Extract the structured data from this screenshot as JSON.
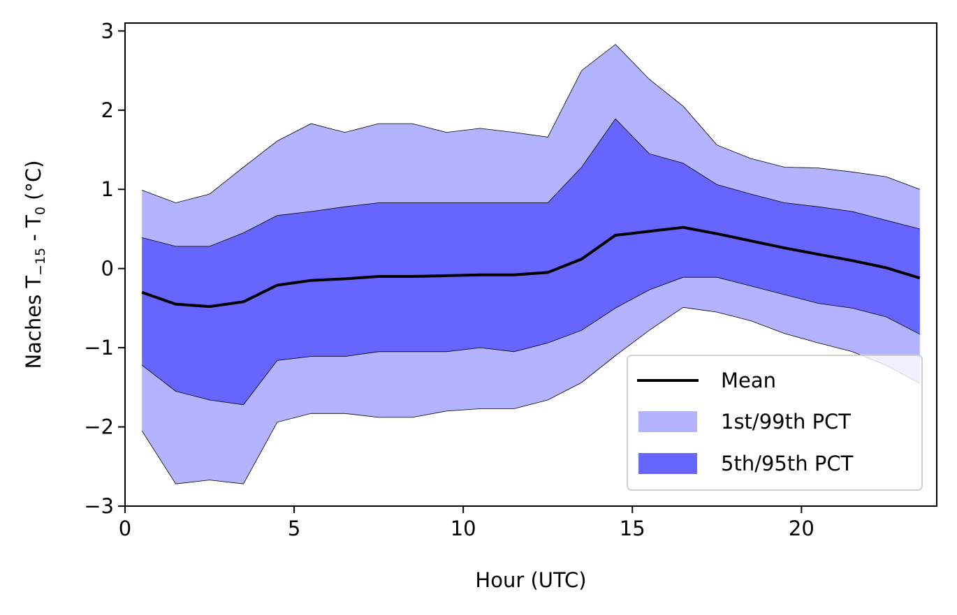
{
  "chart_data": {
    "type": "area",
    "xlabel": "Hour (UTC)",
    "ylabel": {
      "prefix": "Naches T",
      "sub1": "−15",
      "mid": " - T",
      "sub2": "0",
      "suffix": " (°C)"
    },
    "xlim": [
      0,
      24
    ],
    "ylim": [
      -3,
      3.1
    ],
    "xticks": [
      0,
      5,
      10,
      15,
      20
    ],
    "xtick_labels": [
      "0",
      "5",
      "10",
      "15",
      "20"
    ],
    "yticks": [
      -3,
      -2,
      -1,
      0,
      1,
      2,
      3
    ],
    "ytick_labels": [
      "−3",
      "−2",
      "−1",
      "0",
      "1",
      "2",
      "3"
    ],
    "grid": false,
    "legend_position": "lower-right",
    "x": [
      0.5,
      1.5,
      2.5,
      3.5,
      4.5,
      5.5,
      6.5,
      7.5,
      8.5,
      9.5,
      10.5,
      11.5,
      12.5,
      13.5,
      14.5,
      15.5,
      16.5,
      17.5,
      18.5,
      19.5,
      20.5,
      21.5,
      22.5,
      23.5
    ],
    "series": [
      {
        "name": "Mean",
        "kind": "line",
        "color": "#000000",
        "values": [
          -0.3,
          -0.45,
          -0.48,
          -0.42,
          -0.21,
          -0.15,
          -0.13,
          -0.1,
          -0.1,
          -0.09,
          -0.08,
          -0.08,
          -0.05,
          0.12,
          0.42,
          0.47,
          0.52,
          0.44,
          0.35,
          0.26,
          0.18,
          0.1,
          0.01,
          -0.12
        ]
      },
      {
        "name": "1st/99th PCT",
        "kind": "band",
        "color": "#b3b3ff",
        "lower": [
          -2.05,
          -2.72,
          -2.67,
          -2.72,
          -1.94,
          -1.83,
          -1.83,
          -1.88,
          -1.88,
          -1.8,
          -1.77,
          -1.77,
          -1.66,
          -1.44,
          -1.1,
          -0.78,
          -0.49,
          -0.55,
          -0.66,
          -0.82,
          -0.94,
          -1.05,
          -1.22,
          -1.45
        ],
        "upper": [
          0.99,
          0.83,
          0.94,
          1.28,
          1.61,
          1.83,
          1.72,
          1.83,
          1.83,
          1.72,
          1.77,
          1.72,
          1.66,
          2.5,
          2.83,
          2.39,
          2.05,
          1.56,
          1.39,
          1.28,
          1.27,
          1.22,
          1.16,
          1.0
        ]
      },
      {
        "name": "5th/95th PCT",
        "kind": "band",
        "color": "#6666ff",
        "lower": [
          -1.22,
          -1.55,
          -1.66,
          -1.72,
          -1.16,
          -1.11,
          -1.11,
          -1.05,
          -1.05,
          -1.05,
          -1.0,
          -1.05,
          -0.94,
          -0.78,
          -0.5,
          -0.27,
          -0.11,
          -0.11,
          -0.22,
          -0.33,
          -0.44,
          -0.5,
          -0.61,
          -0.83
        ],
        "upper": [
          0.39,
          0.28,
          0.28,
          0.45,
          0.67,
          0.72,
          0.78,
          0.83,
          0.83,
          0.83,
          0.83,
          0.83,
          0.83,
          1.28,
          1.89,
          1.45,
          1.33,
          1.06,
          0.94,
          0.83,
          0.78,
          0.72,
          0.61,
          0.5
        ]
      }
    ]
  }
}
